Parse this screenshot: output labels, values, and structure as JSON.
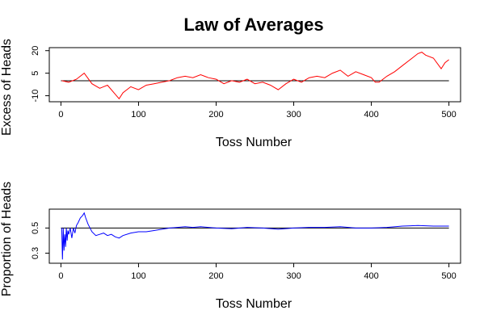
{
  "title": "Law of Averages",
  "chart_data": [
    {
      "type": "line",
      "xlabel": "Toss Number",
      "ylabel": "Excess of Heads",
      "xlim": [
        -15,
        515
      ],
      "ylim": [
        -14,
        22
      ],
      "x_ticks": [
        0,
        100,
        200,
        300,
        400,
        500
      ],
      "y_ticks": [
        -10,
        5,
        20
      ],
      "reference_line": 0,
      "reference_color": "#000000",
      "series": [
        {
          "color": "#ff0000",
          "x": [
            1,
            10,
            20,
            30,
            40,
            50,
            60,
            70,
            75,
            80,
            90,
            100,
            110,
            120,
            130,
            140,
            150,
            160,
            170,
            180,
            190,
            200,
            210,
            220,
            230,
            240,
            250,
            260,
            270,
            280,
            290,
            300,
            310,
            320,
            330,
            340,
            350,
            360,
            370,
            380,
            390,
            400,
            405,
            410,
            420,
            430,
            440,
            450,
            460,
            465,
            470,
            480,
            490,
            495,
            500
          ],
          "values": [
            0,
            -1,
            1,
            5,
            -2,
            -5,
            -3,
            -9,
            -12,
            -8,
            -4,
            -6,
            -3,
            -2,
            -1,
            0,
            2,
            3,
            2,
            4,
            2,
            1,
            -2,
            0,
            -1,
            1,
            -2,
            -1,
            -3,
            -6,
            -2,
            1,
            -1,
            2,
            3,
            2,
            5,
            7,
            3,
            6,
            4,
            2,
            -1,
            -1,
            3,
            6,
            10,
            14,
            18,
            19,
            17,
            15,
            8,
            12,
            14
          ]
        }
      ]
    },
    {
      "type": "line",
      "xlabel": "Toss Number",
      "ylabel": "Proportion of Heads",
      "xlim": [
        -15,
        515
      ],
      "ylim": [
        0.22,
        0.65
      ],
      "x_ticks": [
        0,
        100,
        200,
        300,
        400,
        500
      ],
      "y_ticks": [
        0.3,
        0.5
      ],
      "reference_line": 0.5,
      "reference_color": "#000000",
      "series": [
        {
          "color": "#0000ff",
          "x": [
            1,
            2,
            3,
            4,
            5,
            6,
            7,
            8,
            9,
            10,
            12,
            14,
            16,
            18,
            20,
            22,
            25,
            28,
            30,
            32,
            35,
            40,
            45,
            50,
            55,
            60,
            65,
            70,
            75,
            80,
            90,
            100,
            110,
            120,
            130,
            140,
            150,
            160,
            170,
            180,
            190,
            200,
            220,
            240,
            260,
            280,
            300,
            320,
            340,
            360,
            380,
            400,
            420,
            440,
            460,
            480,
            500
          ],
          "values": [
            0.5,
            0.25,
            0.5,
            0.32,
            0.45,
            0.35,
            0.5,
            0.4,
            0.48,
            0.45,
            0.5,
            0.42,
            0.5,
            0.46,
            0.52,
            0.54,
            0.58,
            0.6,
            0.62,
            0.58,
            0.53,
            0.47,
            0.44,
            0.45,
            0.46,
            0.44,
            0.45,
            0.43,
            0.42,
            0.44,
            0.46,
            0.47,
            0.47,
            0.48,
            0.49,
            0.5,
            0.505,
            0.51,
            0.505,
            0.51,
            0.505,
            0.5,
            0.495,
            0.505,
            0.5,
            0.49,
            0.5,
            0.505,
            0.505,
            0.51,
            0.5,
            0.5,
            0.505,
            0.515,
            0.52,
            0.515,
            0.515
          ]
        }
      ]
    }
  ]
}
